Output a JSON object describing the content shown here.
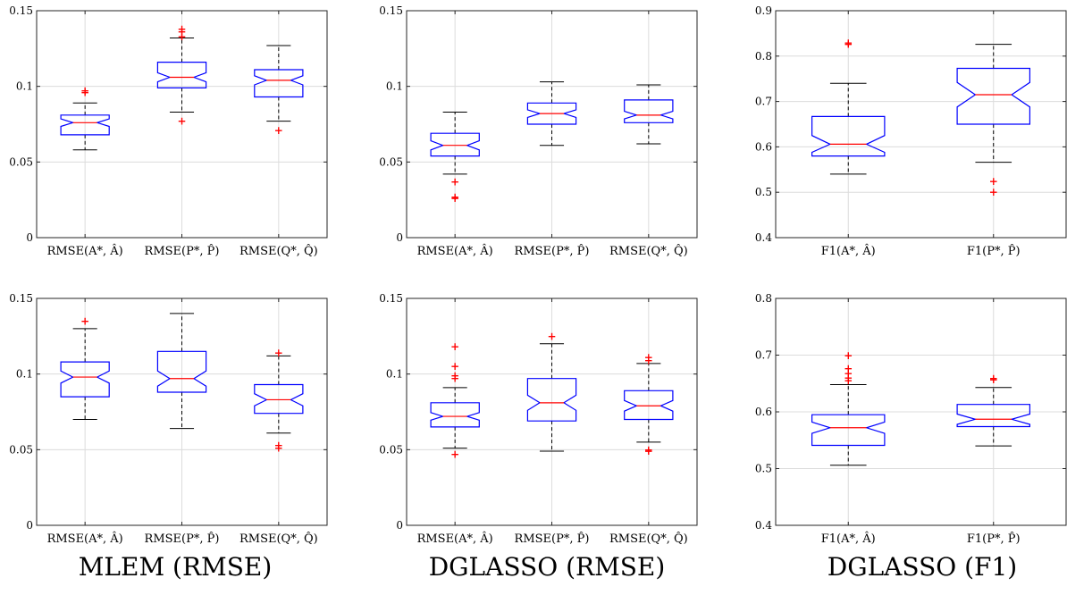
{
  "captions": [
    "MLEM (RMSE)",
    "DGLASSO (RMSE)",
    "DGLASSO (F1)"
  ],
  "colors": {
    "box": "#0000ff",
    "median": "#ff0000",
    "whisker": "#000000",
    "outlier": "#ff0000",
    "grid": "#dcdcdc",
    "axis": "#262626"
  },
  "chart_data": [
    {
      "type": "box",
      "grid": true,
      "ylim": [
        0,
        0.15
      ],
      "yticks": [
        "0",
        "0.05",
        "0.1",
        "0.15"
      ],
      "ytick_values": [
        0,
        0.05,
        0.1,
        0.15
      ],
      "categories": [
        "RMSE(A*, Â)",
        "RMSE(P*, P̂)",
        "RMSE(Q*, Q̂)"
      ],
      "boxes": [
        {
          "whisker_low": 0.058,
          "q1": 0.068,
          "median": 0.076,
          "q3": 0.081,
          "whisker_high": 0.089,
          "notch_low": 0.0735,
          "notch_high": 0.0785,
          "outliers": [
            0.096,
            0.097
          ]
        },
        {
          "whisker_low": 0.083,
          "q1": 0.099,
          "median": 0.106,
          "q3": 0.116,
          "whisker_high": 0.132,
          "notch_low": 0.103,
          "notch_high": 0.109,
          "outliers": [
            0.077,
            0.133,
            0.136,
            0.138
          ]
        },
        {
          "whisker_low": 0.077,
          "q1": 0.093,
          "median": 0.104,
          "q3": 0.111,
          "whisker_high": 0.127,
          "notch_low": 0.101,
          "notch_high": 0.107,
          "outliers": [
            0.071
          ]
        }
      ]
    },
    {
      "type": "box",
      "grid": true,
      "ylim": [
        0,
        0.15
      ],
      "yticks": [
        "0",
        "0.05",
        "0.1",
        "0.15"
      ],
      "ytick_values": [
        0,
        0.05,
        0.1,
        0.15
      ],
      "categories": [
        "RMSE(A*, Â)",
        "RMSE(P*, P̂)",
        "RMSE(Q*, Q̂)"
      ],
      "boxes": [
        {
          "whisker_low": 0.042,
          "q1": 0.054,
          "median": 0.061,
          "q3": 0.069,
          "whisker_high": 0.083,
          "notch_low": 0.058,
          "notch_high": 0.064,
          "outliers": [
            0.026,
            0.027,
            0.037
          ]
        },
        {
          "whisker_low": 0.061,
          "q1": 0.075,
          "median": 0.082,
          "q3": 0.089,
          "whisker_high": 0.103,
          "notch_low": 0.0795,
          "notch_high": 0.0845,
          "outliers": []
        },
        {
          "whisker_low": 0.062,
          "q1": 0.076,
          "median": 0.081,
          "q3": 0.091,
          "whisker_high": 0.101,
          "notch_low": 0.0785,
          "notch_high": 0.0835,
          "outliers": []
        }
      ]
    },
    {
      "type": "box",
      "grid": true,
      "ylim": [
        0.4,
        0.9
      ],
      "yticks": [
        "0.4",
        "0.5",
        "0.6",
        "0.7",
        "0.8",
        "0.9"
      ],
      "ytick_values": [
        0.4,
        0.5,
        0.6,
        0.7,
        0.8,
        0.9
      ],
      "categories": [
        "F1(A*, Â)",
        "F1(P*, P̂)"
      ],
      "boxes": [
        {
          "whisker_low": 0.54,
          "q1": 0.58,
          "median": 0.606,
          "q3": 0.667,
          "whisker_high": 0.74,
          "notch_low": 0.588,
          "notch_high": 0.625,
          "outliers": [
            0.826,
            0.829
          ]
        },
        {
          "whisker_low": 0.566,
          "q1": 0.65,
          "median": 0.715,
          "q3": 0.773,
          "whisker_high": 0.826,
          "notch_low": 0.688,
          "notch_high": 0.742,
          "outliers": [
            0.5,
            0.524
          ]
        }
      ]
    },
    {
      "type": "box",
      "grid": true,
      "ylim": [
        0,
        0.15
      ],
      "yticks": [
        "0",
        "0.05",
        "0.1",
        "0.15"
      ],
      "ytick_values": [
        0,
        0.05,
        0.1,
        0.15
      ],
      "categories": [
        "RMSE(A*, Â)",
        "RMSE(P*, P̂)",
        "RMSE(Q*, Q̂)"
      ],
      "boxes": [
        {
          "whisker_low": 0.07,
          "q1": 0.085,
          "median": 0.098,
          "q3": 0.108,
          "whisker_high": 0.13,
          "notch_low": 0.094,
          "notch_high": 0.102,
          "outliers": [
            0.135
          ]
        },
        {
          "whisker_low": 0.064,
          "q1": 0.088,
          "median": 0.097,
          "q3": 0.115,
          "whisker_high": 0.14,
          "notch_low": 0.092,
          "notch_high": 0.102,
          "outliers": []
        },
        {
          "whisker_low": 0.061,
          "q1": 0.074,
          "median": 0.083,
          "q3": 0.093,
          "whisker_high": 0.112,
          "notch_low": 0.079,
          "notch_high": 0.087,
          "outliers": [
            0.051,
            0.053,
            0.114
          ]
        }
      ]
    },
    {
      "type": "box",
      "grid": true,
      "ylim": [
        0,
        0.15
      ],
      "yticks": [
        "0",
        "0.05",
        "0.1",
        "0.15"
      ],
      "ytick_values": [
        0,
        0.05,
        0.1,
        0.15
      ],
      "categories": [
        "RMSE(A*, Â)",
        "RMSE(P*, P̂)",
        "RMSE(Q*, Q̂)"
      ],
      "boxes": [
        {
          "whisker_low": 0.051,
          "q1": 0.065,
          "median": 0.072,
          "q3": 0.081,
          "whisker_high": 0.091,
          "notch_low": 0.0695,
          "notch_high": 0.0745,
          "outliers": [
            0.047,
            0.097,
            0.099,
            0.105,
            0.118
          ]
        },
        {
          "whisker_low": 0.049,
          "q1": 0.069,
          "median": 0.081,
          "q3": 0.097,
          "whisker_high": 0.12,
          "notch_low": 0.076,
          "notch_high": 0.086,
          "outliers": [
            0.125
          ]
        },
        {
          "whisker_low": 0.055,
          "q1": 0.07,
          "median": 0.079,
          "q3": 0.089,
          "whisker_high": 0.107,
          "notch_low": 0.0755,
          "notch_high": 0.0825,
          "outliers": [
            0.049,
            0.05,
            0.109,
            0.111
          ]
        }
      ]
    },
    {
      "type": "box",
      "grid": true,
      "ylim": [
        0.4,
        0.8
      ],
      "yticks": [
        "0.4",
        "0.5",
        "0.6",
        "0.7",
        "0.8"
      ],
      "ytick_values": [
        0.4,
        0.5,
        0.6,
        0.7,
        0.8
      ],
      "categories": [
        "F1(A*, Â)",
        "F1(P*, P̂)"
      ],
      "boxes": [
        {
          "whisker_low": 0.506,
          "q1": 0.541,
          "median": 0.572,
          "q3": 0.595,
          "whisker_high": 0.648,
          "notch_low": 0.562,
          "notch_high": 0.582,
          "outliers": [
            0.655,
            0.66,
            0.668,
            0.676,
            0.699
          ]
        },
        {
          "whisker_low": 0.54,
          "q1": 0.574,
          "median": 0.587,
          "q3": 0.613,
          "whisker_high": 0.643,
          "notch_low": 0.578,
          "notch_high": 0.596,
          "outliers": [
            0.657,
            0.659
          ]
        }
      ]
    }
  ]
}
